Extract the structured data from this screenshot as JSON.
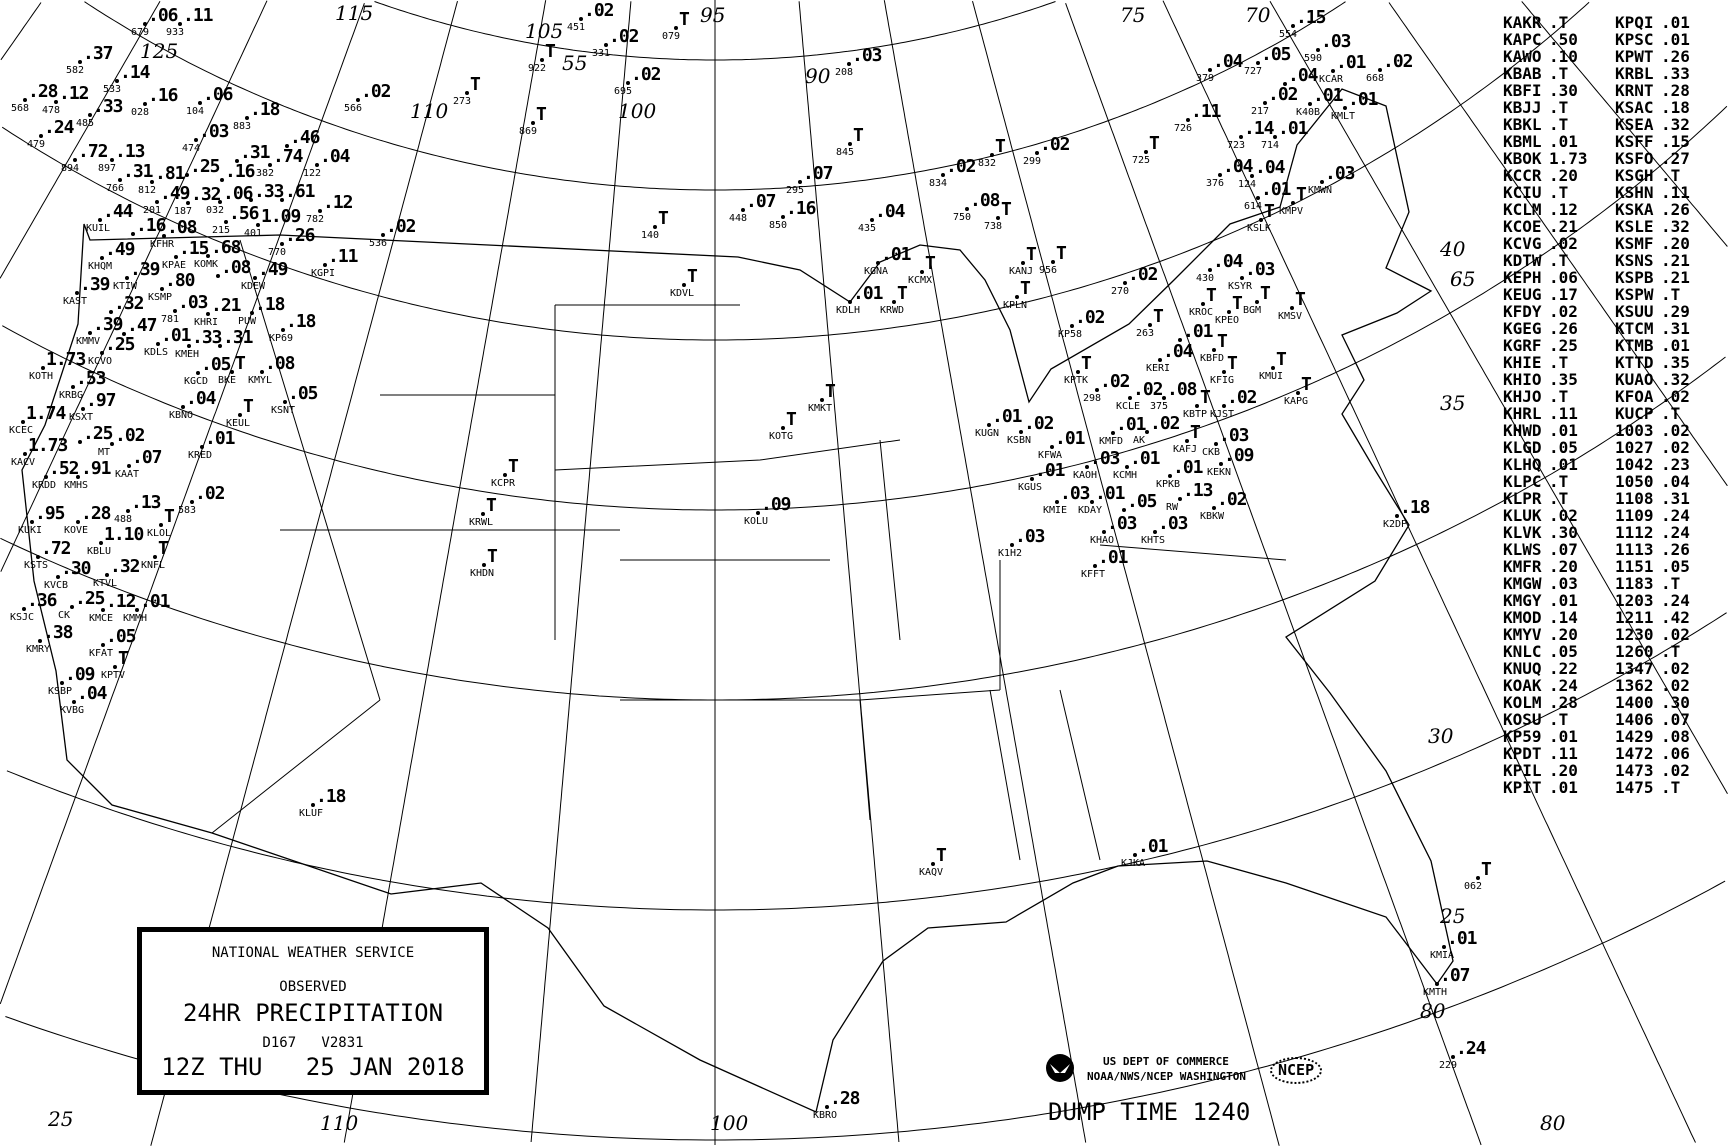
{
  "title_box": {
    "agency": "NATIONAL WEATHER SERVICE",
    "observed": "OBSERVED",
    "product": "24HR PRECIPITATION",
    "codes": "D167   V2831",
    "valid_time": "12Z THU   25 JAN 2018"
  },
  "credit": {
    "line1": "US DEPT OF COMMERCE",
    "line2": "NOAA/NWS/NCEP WASHINGTON",
    "ncep_logo": "NCEP",
    "noaa_logo": "noaa-logo-icon"
  },
  "dump_time": "DUMP TIME 1240",
  "grid_labels": [
    "115",
    "105",
    "95",
    "75",
    "70",
    "125",
    "110",
    "100",
    "90",
    "55",
    "40",
    "35",
    "30",
    "25",
    "65",
    "80",
    "25",
    "110",
    "100",
    "80"
  ],
  "map": {
    "stations": [
      [
        ".37",
        "582"
      ],
      [
        ".14",
        "533"
      ],
      [
        ".28",
        "568"
      ],
      [
        ".12",
        "478"
      ],
      [
        ".33",
        "485"
      ],
      [
        ".24",
        "479"
      ],
      [
        ".16",
        "028"
      ],
      [
        ".06",
        "104"
      ],
      [
        ".18",
        "883"
      ],
      [
        ".03",
        "474"
      ],
      [
        ".72",
        "894"
      ],
      [
        ".13",
        "897"
      ],
      [
        ".31",
        "766"
      ],
      [
        ".81",
        "812"
      ],
      [
        ".49",
        "201"
      ],
      [
        ".25",
        ""
      ],
      [
        ".32",
        "187"
      ],
      [
        ".06",
        "032"
      ],
      [
        ".16",
        ""
      ],
      [
        ".31",
        ""
      ],
      [
        ".74",
        "382"
      ],
      [
        ".46",
        ""
      ],
      [
        ".04",
        "122"
      ],
      [
        ".33",
        ""
      ],
      [
        ".61",
        ""
      ],
      [
        ".44",
        "KUIL"
      ],
      [
        ".16",
        ""
      ],
      [
        ".08",
        "KFHR"
      ],
      [
        ".56",
        "215"
      ],
      [
        "1.09",
        "401"
      ],
      [
        ".26",
        "770"
      ],
      [
        ".11",
        "KGPI"
      ],
      [
        ".12",
        "782"
      ],
      [
        ".15",
        "KPAE"
      ],
      [
        ".68",
        "KOMK"
      ],
      [
        ".49",
        "KHQM"
      ],
      [
        ".39",
        "KTIW"
      ],
      [
        ".80",
        "KSMP"
      ],
      [
        ".49",
        "KDEW"
      ],
      [
        ".08",
        ""
      ],
      [
        ".03",
        "781"
      ],
      [
        ".39",
        "KAST"
      ],
      [
        ".32",
        ""
      ],
      [
        ".47",
        ""
      ],
      [
        ".18",
        "PUW"
      ],
      [
        ".39",
        "KMMV"
      ],
      [
        ".01",
        "KDLS"
      ],
      [
        ".21",
        "KHRI"
      ],
      [
        ".31",
        ""
      ],
      [
        ".18",
        "KP69"
      ],
      [
        ".25",
        "KCVO"
      ],
      [
        ".33",
        "KMEH"
      ],
      [
        "1.73",
        "KOTH"
      ],
      [
        ".53",
        "KRBG"
      ],
      [
        ".97",
        "KSXT"
      ],
      [
        "1.74",
        "KCEC"
      ],
      [
        ".25",
        ""
      ],
      [
        ".02",
        "MT"
      ],
      [
        "1.73",
        "KACV"
      ],
      [
        ".91",
        "KMHS"
      ],
      [
        ".07",
        "KAAT"
      ],
      [
        ".52",
        "KRDD"
      ],
      [
        ".02",
        "583"
      ],
      [
        ".95",
        "KUKI"
      ],
      [
        ".28",
        "KOVE"
      ],
      [
        "T",
        "KLOL"
      ],
      [
        "1.10",
        "KBLU"
      ],
      [
        ".13",
        "488"
      ],
      [
        "T",
        "KNFL"
      ],
      [
        ".72",
        "KSTS"
      ],
      [
        ".32",
        "KTVL"
      ],
      [
        ".30",
        "KVCB"
      ],
      [
        ".25",
        "CK"
      ],
      [
        ".36",
        "KSJC"
      ],
      [
        ".12",
        "KMCE"
      ],
      [
        ".01",
        "KMMH"
      ],
      [
        ".38",
        "KMRY"
      ],
      [
        ".05",
        "KFAT"
      ],
      [
        "T",
        "KPTV"
      ],
      [
        ".09",
        "KSBP"
      ],
      [
        ".04",
        "KVBG"
      ],
      [
        ".05",
        "KGCD"
      ],
      [
        "T",
        "BKE"
      ],
      [
        ".08",
        "KMYL"
      ],
      [
        ".04",
        "KBNO"
      ],
      [
        "T",
        "KEUL"
      ],
      [
        ".05",
        "KSNT"
      ],
      [
        ".01",
        "KRED"
      ],
      [
        "T",
        "KCPR"
      ],
      [
        "T",
        "KRWL"
      ],
      [
        "T",
        "KHDN"
      ],
      [
        ".18",
        "KLUF"
      ],
      [
        ".09",
        "KOLU"
      ],
      [
        "T",
        "KOTG"
      ],
      [
        "T",
        "KMKT"
      ],
      [
        "T",
        "KDVL"
      ],
      [
        ".01",
        "KGNA"
      ],
      [
        "T",
        "KCMX"
      ],
      [
        "T",
        "KANJ"
      ],
      [
        ".01",
        "KDLH"
      ],
      [
        "T",
        "KRWD"
      ],
      [
        "T",
        "KPLN"
      ],
      [
        ".01",
        "KUGN"
      ],
      [
        ".03",
        "K1H2"
      ],
      [
        "T",
        "KAQV"
      ],
      [
        ".01",
        "KJKA"
      ],
      [
        ".18",
        "K2DP"
      ],
      [
        ".01",
        "KMIA"
      ],
      [
        ".07",
        "KMTH"
      ],
      [
        ".24",
        "229"
      ],
      [
        ".28",
        "KBRO"
      ],
      [
        "T",
        "062"
      ],
      [
        "T",
        "956"
      ],
      [
        ".02",
        "270"
      ],
      [
        ".02",
        "KP58"
      ],
      [
        "T",
        "263"
      ],
      [
        ".04",
        "430"
      ],
      [
        ".03",
        "KSYR"
      ],
      [
        "T",
        "KROC"
      ],
      [
        "T",
        "KPEO"
      ],
      [
        "T",
        "BGM"
      ],
      [
        "T",
        "KMSV"
      ],
      [
        "T",
        "KPTK"
      ],
      [
        ".02",
        "298"
      ],
      [
        ".04",
        "KERI"
      ],
      [
        ".01",
        ""
      ],
      [
        "T",
        "KBFD"
      ],
      [
        "T",
        "KFIG"
      ],
      [
        "T",
        "KMUI"
      ],
      [
        "T",
        "KAPG"
      ],
      [
        ".02",
        "KCLE"
      ],
      [
        ".08",
        "375"
      ],
      [
        "T",
        "KBTP"
      ],
      [
        ".02",
        "KJST"
      ],
      [
        ".02",
        "AK"
      ],
      [
        "T",
        "KAFJ"
      ],
      [
        ".01",
        "KMFD"
      ],
      [
        ".02",
        "KSBN"
      ],
      [
        ".01",
        "KFWA"
      ],
      [
        ".03",
        "KAOH"
      ],
      [
        ".01",
        "KCMH"
      ],
      [
        ".01",
        "KPKB"
      ],
      [
        ".03",
        "CKB"
      ],
      [
        ".09",
        "KEKN"
      ],
      [
        ".01",
        "KGUS"
      ],
      [
        ".03",
        "KMIE"
      ],
      [
        ".01",
        "KDAY"
      ],
      [
        ".05",
        ""
      ],
      [
        ".03",
        "KHAO"
      ],
      [
        ".13",
        "RW"
      ],
      [
        ".03",
        "KHTS"
      ],
      [
        ".02",
        "KBKW"
      ],
      [
        ".01",
        "KFFT"
      ],
      [
        ".15",
        "554"
      ],
      [
        ".04",
        "379"
      ],
      [
        ".05",
        "727"
      ],
      [
        ".03",
        "590"
      ],
      [
        ".01",
        "KCAR"
      ],
      [
        ".02",
        "668"
      ],
      [
        ".04",
        ""
      ],
      [
        ".02",
        "217"
      ],
      [
        ".01",
        "K40B"
      ],
      [
        ".01",
        "714"
      ],
      [
        ".01",
        "KMLT"
      ],
      [
        ".11",
        "726"
      ],
      [
        ".14",
        "723"
      ],
      [
        ".04",
        "376"
      ],
      [
        ".04",
        "124"
      ],
      [
        ".01",
        "614"
      ],
      [
        ".03",
        "KMWN"
      ],
      [
        "T",
        "KMPV"
      ],
      [
        "T",
        "KSLK"
      ],
      [
        ".02",
        "566"
      ],
      [
        ".02",
        "536"
      ],
      [
        ".07",
        "295"
      ],
      [
        ".04",
        "435"
      ],
      [
        ".08",
        "750"
      ],
      [
        "T",
        "738"
      ],
      [
        ".02",
        "834"
      ],
      [
        "T",
        "832"
      ],
      [
        ".02",
        "299"
      ],
      [
        "T",
        "725"
      ],
      [
        ".07",
        "448"
      ],
      [
        ".16",
        "850"
      ],
      [
        "T",
        "140"
      ],
      [
        "T",
        "845"
      ],
      [
        ".03",
        "208"
      ],
      [
        ".02",
        "695"
      ],
      [
        "T",
        "869"
      ],
      [
        "T",
        "273"
      ],
      [
        "T",
        "922"
      ],
      [
        ".02",
        "451"
      ],
      [
        ".02",
        "331"
      ],
      [
        "T",
        "079"
      ],
      [
        ".06",
        "679"
      ],
      [
        ".11",
        "933"
      ]
    ]
  },
  "table": {
    "left": [
      [
        "KAKR",
        ".T"
      ],
      [
        "KAPC",
        ".50"
      ],
      [
        "KAWO",
        ".10"
      ],
      [
        "KBAB",
        ".T"
      ],
      [
        "KBFI",
        ".30"
      ],
      [
        "KBJJ",
        ".T"
      ],
      [
        "KBKL",
        ".T"
      ],
      [
        "KBML",
        ".01"
      ],
      [
        "KBOK",
        "1.73"
      ],
      [
        "KCCR",
        ".20"
      ],
      [
        "KCIU",
        ".T"
      ],
      [
        "KCLM",
        ".12"
      ],
      [
        "KCOE",
        ".21"
      ],
      [
        "KCVG",
        ".02"
      ],
      [
        "KDTW",
        ".T"
      ],
      [
        "KEPH",
        ".06"
      ],
      [
        "KEUG",
        ".17"
      ],
      [
        "KFDY",
        ".02"
      ],
      [
        "KGEG",
        ".26"
      ],
      [
        "KGRF",
        ".25"
      ],
      [
        "KHIE",
        ".T"
      ],
      [
        "KHIO",
        ".35"
      ],
      [
        "KHJO",
        ".T"
      ],
      [
        "KHRL",
        ".11"
      ],
      [
        "KHWD",
        ".01"
      ],
      [
        "KLGD",
        ".05"
      ],
      [
        "KLHQ",
        ".01"
      ],
      [
        "KLPC",
        ".T"
      ],
      [
        "KLPR",
        ".T"
      ],
      [
        "KLUK",
        ".02"
      ],
      [
        "KLVK",
        ".30"
      ],
      [
        "KLWS",
        ".07"
      ],
      [
        "KMFR",
        ".20"
      ],
      [
        "KMGW",
        ".03"
      ],
      [
        "KMGY",
        ".01"
      ],
      [
        "KMOD",
        ".14"
      ],
      [
        "KMYV",
        ".20"
      ],
      [
        "KNLC",
        ".05"
      ],
      [
        "KNUQ",
        ".22"
      ],
      [
        "KOAK",
        ".24"
      ],
      [
        "KOLM",
        ".28"
      ],
      [
        "KOSU",
        ".T"
      ],
      [
        "KP59",
        ".01"
      ],
      [
        "KPDT",
        ".11"
      ],
      [
        "KPIL",
        ".20"
      ],
      [
        "KPIT",
        ".01"
      ]
    ],
    "right": [
      [
        "KPQI",
        ".01"
      ],
      [
        "KPSC",
        ".01"
      ],
      [
        "KPWT",
        ".26"
      ],
      [
        "KRBL",
        ".33"
      ],
      [
        "KRNT",
        ".28"
      ],
      [
        "KSAC",
        ".18"
      ],
      [
        "KSEA",
        ".32"
      ],
      [
        "KSFF",
        ".15"
      ],
      [
        "KSFO",
        ".27"
      ],
      [
        "KSGH",
        ".T"
      ],
      [
        "KSHN",
        ".11"
      ],
      [
        "KSKA",
        ".26"
      ],
      [
        "KSLE",
        ".32"
      ],
      [
        "KSMF",
        ".20"
      ],
      [
        "KSNS",
        ".21"
      ],
      [
        "KSPB",
        ".21"
      ],
      [
        "KSPW",
        ".T"
      ],
      [
        "KSUU",
        ".29"
      ],
      [
        "KTCM",
        ".31"
      ],
      [
        "KTMB",
        ".01"
      ],
      [
        "KTTD",
        ".35"
      ],
      [
        "KUAO",
        ".32"
      ],
      [
        "KFOA",
        ".02"
      ],
      [
        "KUCP",
        ".T"
      ],
      [
        "1003",
        ".02"
      ],
      [
        "1027",
        ".02"
      ],
      [
        "1042",
        ".23"
      ],
      [
        "1050",
        ".04"
      ],
      [
        "1108",
        ".31"
      ],
      [
        "1109",
        ".24"
      ],
      [
        "1112",
        ".24"
      ],
      [
        "1113",
        ".26"
      ],
      [
        "1151",
        ".05"
      ],
      [
        "1183",
        ".T"
      ],
      [
        "1203",
        ".24"
      ],
      [
        "1211",
        ".42"
      ],
      [
        "1230",
        ".02"
      ],
      [
        "1260",
        ".T"
      ],
      [
        "1347",
        ".02"
      ],
      [
        "1362",
        ".02"
      ],
      [
        "1400",
        ".30"
      ],
      [
        "1406",
        ".07"
      ],
      [
        "1429",
        ".08"
      ],
      [
        "1472",
        ".06"
      ],
      [
        "1473",
        ".02"
      ],
      [
        "1475",
        ".T"
      ]
    ]
  }
}
